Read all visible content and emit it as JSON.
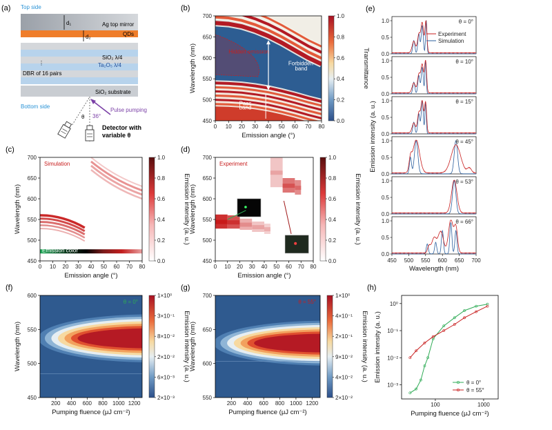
{
  "colors": {
    "red": "#c81e1e",
    "blue": "#2b5f9e",
    "green": "#2eab55",
    "orange": "#ef7d2a",
    "purple": "#7a3fa6",
    "cyan_text": "#2a93d6"
  },
  "panel_a": {
    "letter": "(a)",
    "top_side": "Top side",
    "bottom_side": "Bottom side",
    "ag_mirror": "Ag top mirror",
    "qds": "QDs",
    "d1": "d₁",
    "d2": "d₂",
    "sio2": "SiO₂ λ/4",
    "ta2o5": "Ta₂O₅ λ/4",
    "dbr": "DBR of 16 pairs",
    "substrate": "SiO₂ substrate",
    "pulse": "Pulse pumping",
    "angle36": "36°",
    "theta": "θ",
    "detector1": "Detector with",
    "detector2": "variable θ"
  },
  "chart_data": [
    {
      "id": "b",
      "letter": "(b)",
      "type": "heatmap",
      "xlabel": "Emission angle (°)",
      "ylabel": "Wavelength (nm)",
      "xlim": [
        0,
        80
      ],
      "ylim": [
        450,
        700
      ],
      "xticks": [
        0,
        10,
        20,
        30,
        40,
        50,
        60,
        70,
        80
      ],
      "yticks": [
        450,
        500,
        550,
        600,
        650,
        700
      ],
      "colorbar": {
        "label": "Transmittance",
        "ticks": [
          "1.0",
          "0.8",
          "0.6",
          "0.4",
          "0.2",
          "0.0"
        ]
      },
      "annotations": {
        "hidden": "Hidden emission",
        "forbidden1": "Forbidden",
        "forbidden2": "band",
        "pass1": "Pass",
        "pass2": "band"
      },
      "cavity_mode_upper": {
        "angle": [
          0,
          10,
          20,
          30,
          40,
          50,
          60,
          70,
          80
        ],
        "wavelength": [
          683,
          681,
          675,
          665,
          652,
          636,
          618,
          600,
          585
        ]
      },
      "cavity_mode_lower": {
        "angle": [
          0,
          10,
          20,
          30,
          40,
          50,
          60,
          70,
          80
        ],
        "wavelength": [
          540,
          539,
          537,
          533,
          528,
          521,
          513,
          504,
          496
        ]
      }
    },
    {
      "id": "c",
      "letter": "(c)",
      "type": "heatmap",
      "label": "Simulation",
      "xlabel": "Emission angle (°)",
      "ylabel": "Wavelength (nm)",
      "xlim": [
        0,
        80
      ],
      "ylim": [
        450,
        700
      ],
      "xticks": [
        0,
        10,
        20,
        30,
        40,
        50,
        60,
        70,
        80
      ],
      "yticks": [
        450,
        500,
        550,
        600,
        650,
        700
      ],
      "colorbar": {
        "label": "Emission intensity (a. u.)",
        "ticks": [
          "1.0",
          "0.8",
          "0.6",
          "0.4",
          "0.2",
          "0.0"
        ]
      },
      "emission_color_label": "Emission color"
    },
    {
      "id": "d",
      "letter": "(d)",
      "type": "heatmap",
      "label": "Experiment",
      "xlabel": "Emission angle (°)",
      "ylabel": "Wavelength (nm)",
      "xlim": [
        0,
        80
      ],
      "ylim": [
        450,
        700
      ],
      "xticks": [
        0,
        10,
        20,
        30,
        40,
        50,
        60,
        70,
        80
      ],
      "yticks": [
        450,
        500,
        550,
        600,
        650,
        700
      ],
      "colorbar": {
        "label": "Emission intensity (a. u.)",
        "ticks": [
          "1.0",
          "0.8",
          "0.6",
          "0.4",
          "0.2",
          "0.0"
        ]
      },
      "blocks": [
        {
          "a0": 0,
          "a1": 10,
          "l0": 528,
          "l1": 562,
          "v": 0.9
        },
        {
          "a0": 10,
          "a1": 20,
          "l0": 528,
          "l1": 560,
          "v": 0.75
        },
        {
          "a0": 20,
          "a1": 30,
          "l0": 525,
          "l1": 552,
          "v": 0.35
        },
        {
          "a0": 30,
          "a1": 40,
          "l0": 520,
          "l1": 545,
          "v": 0.25
        },
        {
          "a0": 40,
          "a1": 45,
          "l0": 515,
          "l1": 540,
          "v": 0.2
        },
        {
          "a0": 45,
          "a1": 55,
          "l0": 628,
          "l1": 700,
          "v": 0.25
        },
        {
          "a0": 55,
          "a1": 65,
          "l0": 615,
          "l1": 650,
          "v": 0.6
        },
        {
          "a0": 65,
          "a1": 70,
          "l0": 610,
          "l1": 645,
          "v": 0.5
        }
      ]
    },
    {
      "id": "e",
      "letter": "(e)",
      "type": "line",
      "xlabel": "Wavelength (nm)",
      "ylabel": "Emission intensity (a. u.)",
      "xlim": [
        450,
        700
      ],
      "ylim": [
        0,
        1.0
      ],
      "xticks": [
        450,
        500,
        550,
        600,
        650,
        700
      ],
      "legend": [
        "Experiment",
        "Simulation"
      ],
      "subplots": [
        {
          "theta": "θ = 0°",
          "peaks_exp": [
            [
              515,
              0.35,
              5
            ],
            [
              530,
              0.55,
              4
            ],
            [
              540,
              0.9,
              4
            ],
            [
              551,
              0.95,
              3
            ]
          ],
          "peaks_sim": [
            [
              515,
              0.4,
              3
            ],
            [
              530,
              0.6,
              3
            ],
            [
              540,
              0.85,
              3
            ],
            [
              552,
              1.0,
              2
            ]
          ]
        },
        {
          "theta": "θ = 10°",
          "peaks_exp": [
            [
              515,
              0.3,
              5
            ],
            [
              530,
              0.55,
              4
            ],
            [
              540,
              0.85,
              4
            ],
            [
              550,
              0.95,
              3
            ]
          ],
          "peaks_sim": [
            [
              515,
              0.35,
              3
            ],
            [
              530,
              0.55,
              3
            ],
            [
              540,
              0.8,
              3
            ],
            [
              550,
              1.0,
              2
            ]
          ]
        },
        {
          "theta": "θ = 15°",
          "peaks_exp": [
            [
              515,
              0.3,
              5
            ],
            [
              530,
              0.6,
              4
            ],
            [
              540,
              0.95,
              4
            ],
            [
              550,
              0.9,
              3
            ]
          ],
          "peaks_sim": [
            [
              515,
              0.35,
              3
            ],
            [
              530,
              0.6,
              3
            ],
            [
              540,
              1.0,
              3
            ],
            [
              550,
              0.95,
              2
            ]
          ]
        },
        {
          "theta": "θ = 45°",
          "peaks_exp": [
            [
              505,
              0.35,
              4
            ],
            [
              522,
              1.0,
              10
            ],
            [
              640,
              0.85,
              14
            ],
            [
              680,
              0.15,
              6
            ]
          ],
          "peaks_sim": [
            [
              505,
              0.5,
              3
            ],
            [
              522,
              1.0,
              5
            ],
            [
              640,
              1.0,
              5
            ]
          ]
        },
        {
          "theta": "θ = 53°",
          "peaks_exp": [
            [
              635,
              1.0,
              8
            ]
          ],
          "peaks_sim": [
            [
              635,
              1.0,
              5
            ]
          ]
        },
        {
          "theta": "θ = 66°",
          "peaks_exp": [
            [
              560,
              0.2,
              4
            ],
            [
              575,
              0.45,
              7
            ],
            [
              595,
              0.65,
              8
            ],
            [
              625,
              1.0,
              7
            ],
            [
              640,
              0.75,
              5
            ]
          ],
          "peaks_sim": [
            [
              555,
              0.3,
              3
            ],
            [
              580,
              0.35,
              3
            ],
            [
              600,
              0.7,
              3
            ],
            [
              625,
              0.95,
              3
            ],
            [
              640,
              0.7,
              3
            ]
          ]
        }
      ]
    },
    {
      "id": "f",
      "letter": "(f)",
      "type": "heatmap",
      "label": "θ = 0°",
      "xlabel": "Pumping fluence (μJ cm⁻²)",
      "ylabel": "Wavelength (nm)",
      "xlim": [
        0,
        1300
      ],
      "ylim": [
        450,
        600
      ],
      "xticks": [
        200,
        400,
        600,
        800,
        1000,
        1200
      ],
      "yticks": [
        450,
        500,
        550,
        600
      ],
      "center_nm": 537,
      "halfwidth_nm": 32,
      "colorbar": {
        "label": "Emission intensity (a. u.)",
        "ticks": [
          "1×10⁰",
          "3×10⁻¹",
          "8×10⁻²",
          "2×10⁻²",
          "6×10⁻³",
          "2×10⁻³"
        ]
      }
    },
    {
      "id": "g",
      "letter": "(g)",
      "type": "heatmap",
      "label": "θ = 55°",
      "xlabel": "Pumping fluence (μJ cm⁻²)",
      "ylabel": "Wavelength (nm)",
      "xlim": [
        0,
        1300
      ],
      "ylim": [
        550,
        700
      ],
      "xticks": [
        200,
        400,
        600,
        800,
        1000,
        1200
      ],
      "yticks": [
        550,
        600,
        650,
        700
      ],
      "center_nm": 630,
      "halfwidth_nm": 30,
      "colorbar": {
        "label": "Emission intensity (a. u.)",
        "ticks": [
          "1×10⁰",
          "4×10⁻¹",
          "2×10⁻¹",
          "9×10⁻²",
          "4×10⁻²",
          "2×10⁻²"
        ]
      }
    },
    {
      "id": "h",
      "letter": "(h)",
      "type": "line",
      "xlabel": "Pumping fluence (μJ cm⁻²)",
      "ylabel": "Emission intensity (a. u.)",
      "xscale": "log",
      "yscale": "log",
      "xlim": [
        20,
        2000
      ],
      "ylim": [
        0.0003,
        2
      ],
      "xticks": [
        "100",
        "1000"
      ],
      "yticks": [
        "10⁰",
        "10⁻¹",
        "10⁻²",
        "10⁻³"
      ],
      "series": [
        {
          "name": "θ = 0°",
          "x": [
            30,
            40,
            50,
            60,
            70,
            90,
            150,
            250,
            400,
            700,
            1200
          ],
          "y": [
            0.0005,
            0.0007,
            0.0015,
            0.005,
            0.01,
            0.05,
            0.15,
            0.3,
            0.55,
            0.8,
            0.95
          ]
        },
        {
          "name": "θ = 55°",
          "x": [
            30,
            40,
            60,
            90,
            150,
            250,
            400,
            700,
            1200
          ],
          "y": [
            0.01,
            0.018,
            0.035,
            0.06,
            0.1,
            0.17,
            0.3,
            0.5,
            0.8
          ]
        }
      ]
    }
  ]
}
